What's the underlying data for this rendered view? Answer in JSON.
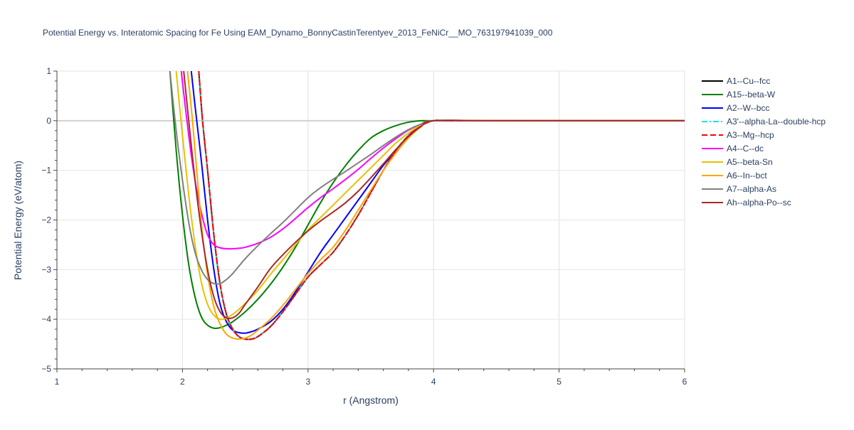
{
  "chart_data": {
    "type": "line",
    "title": "Potential Energy vs. Interatomic Spacing for Fe Using EAM_Dynamo_BonnyCastinTerentyev_2013_FeNiCr__MO_763197941039_000",
    "xlabel": "r (Angstrom)",
    "ylabel": "Potential Energy (eV/atom)",
    "xlim": [
      1,
      6
    ],
    "ylim": [
      -5,
      1
    ],
    "xticks": [
      1,
      2,
      3,
      4,
      5,
      6
    ],
    "yticks": [
      1,
      0,
      -1,
      -2,
      -3,
      -4,
      -5
    ],
    "xtick_labels": [
      "1",
      "2",
      "3",
      "4",
      "5",
      "6"
    ],
    "ytick_labels": [
      "1",
      "0",
      "−1",
      "−2",
      "−3",
      "−4",
      "−5"
    ],
    "grid": true,
    "legend_position": "right",
    "series": [
      {
        "name": "A1--Cu--fcc",
        "color": "#000000",
        "dash": "solid",
        "x": [
          2.13,
          2.16,
          2.2,
          2.25,
          2.3,
          2.35,
          2.4,
          2.45,
          2.5,
          2.55,
          2.6,
          2.7,
          2.8,
          2.9,
          3.0,
          3.1,
          3.2,
          3.3,
          3.4,
          3.5,
          3.6,
          3.7,
          3.8,
          3.9,
          4.0,
          4.1,
          4.5,
          5.0,
          6.0
        ],
        "y": [
          1.0,
          0.0,
          -1.0,
          -2.3,
          -3.3,
          -3.9,
          -4.2,
          -4.35,
          -4.4,
          -4.4,
          -4.35,
          -4.15,
          -3.85,
          -3.5,
          -3.15,
          -2.9,
          -2.65,
          -2.3,
          -1.9,
          -1.45,
          -1.0,
          -0.6,
          -0.3,
          -0.1,
          0.0,
          0.0,
          0.0,
          0.0,
          0.0
        ]
      },
      {
        "name": "A15--beta-W",
        "color": "#008000",
        "dash": "solid",
        "x": [
          1.9,
          1.95,
          2.0,
          2.05,
          2.1,
          2.15,
          2.2,
          2.25,
          2.3,
          2.35,
          2.4,
          2.5,
          2.6,
          2.7,
          2.8,
          2.9,
          3.0,
          3.1,
          3.2,
          3.3,
          3.4,
          3.5,
          3.6,
          3.7,
          3.8,
          3.9,
          4.0,
          4.5,
          6.0
        ],
        "y": [
          1.0,
          -0.6,
          -1.9,
          -2.9,
          -3.55,
          -3.95,
          -4.12,
          -4.18,
          -4.17,
          -4.12,
          -4.05,
          -3.85,
          -3.6,
          -3.3,
          -2.95,
          -2.55,
          -2.1,
          -1.65,
          -1.25,
          -0.9,
          -0.6,
          -0.35,
          -0.2,
          -0.1,
          -0.03,
          0.0,
          0.0,
          0.0,
          0.0
        ]
      },
      {
        "name": "A2--W--bcc",
        "color": "#0000ff",
        "dash": "solid",
        "x": [
          2.07,
          2.1,
          2.15,
          2.2,
          2.25,
          2.3,
          2.35,
          2.4,
          2.45,
          2.5,
          2.55,
          2.6,
          2.7,
          2.8,
          2.9,
          3.0,
          3.1,
          3.2,
          3.3,
          3.4,
          3.5,
          3.6,
          3.7,
          3.8,
          3.9,
          4.0,
          4.1,
          4.5,
          6.0
        ],
        "y": [
          1.0,
          0.3,
          -0.8,
          -2.0,
          -3.0,
          -3.7,
          -4.05,
          -4.22,
          -4.27,
          -4.28,
          -4.25,
          -4.2,
          -4.05,
          -3.8,
          -3.45,
          -3.05,
          -2.65,
          -2.3,
          -1.95,
          -1.6,
          -1.25,
          -0.9,
          -0.6,
          -0.3,
          -0.1,
          0.0,
          0.0,
          0.0,
          0.0
        ]
      },
      {
        "name": "A3'--alpha-La--double-hcp",
        "color": "#00e5ee",
        "dash": "dashdot",
        "x": [
          2.13,
          2.16,
          2.2,
          2.25,
          2.3,
          2.35,
          2.4,
          2.45,
          2.5,
          2.55,
          2.6,
          2.7,
          2.8,
          2.9,
          3.0,
          3.1,
          3.2,
          3.3,
          3.4,
          3.5,
          3.6,
          3.7,
          3.8,
          3.9,
          4.0,
          4.1,
          4.5,
          5.0,
          6.0
        ],
        "y": [
          1.0,
          0.0,
          -1.0,
          -2.3,
          -3.3,
          -3.9,
          -4.2,
          -4.35,
          -4.4,
          -4.4,
          -4.35,
          -4.15,
          -3.85,
          -3.5,
          -3.15,
          -2.9,
          -2.65,
          -2.3,
          -1.9,
          -1.45,
          -1.0,
          -0.6,
          -0.3,
          -0.1,
          0.0,
          0.0,
          0.0,
          0.0,
          0.0
        ]
      },
      {
        "name": "A3--Mg--hcp",
        "color": "#ff0000",
        "dash": "dash",
        "x": [
          2.13,
          2.16,
          2.2,
          2.25,
          2.3,
          2.35,
          2.4,
          2.45,
          2.5,
          2.55,
          2.6,
          2.7,
          2.8,
          2.9,
          3.0,
          3.1,
          3.2,
          3.3,
          3.4,
          3.5,
          3.6,
          3.7,
          3.8,
          3.9,
          4.0,
          4.1,
          4.5,
          5.0,
          6.0
        ],
        "y": [
          1.0,
          0.0,
          -1.0,
          -2.3,
          -3.3,
          -3.9,
          -4.2,
          -4.35,
          -4.4,
          -4.4,
          -4.35,
          -4.15,
          -3.85,
          -3.5,
          -3.15,
          -2.9,
          -2.65,
          -2.3,
          -1.9,
          -1.45,
          -1.0,
          -0.6,
          -0.3,
          -0.1,
          0.0,
          0.0,
          0.0,
          0.0,
          0.0
        ]
      },
      {
        "name": "A4--C--dc",
        "color": "#ff00ff",
        "dash": "solid",
        "x": [
          1.99,
          2.05,
          2.1,
          2.15,
          2.2,
          2.25,
          2.3,
          2.35,
          2.4,
          2.45,
          2.5,
          2.6,
          2.7,
          2.8,
          2.9,
          3.0,
          3.1,
          3.2,
          3.3,
          3.4,
          3.5,
          3.6,
          3.7,
          3.8,
          3.9,
          4.0,
          4.5,
          6.0
        ],
        "y": [
          1.0,
          -0.3,
          -1.2,
          -1.85,
          -2.3,
          -2.5,
          -2.56,
          -2.58,
          -2.58,
          -2.57,
          -2.55,
          -2.47,
          -2.35,
          -2.18,
          -1.97,
          -1.75,
          -1.55,
          -1.37,
          -1.18,
          -0.98,
          -0.76,
          -0.55,
          -0.36,
          -0.19,
          -0.07,
          0.0,
          0.0,
          0.0
        ]
      },
      {
        "name": "A5--beta-Sn",
        "color": "#e6c200",
        "dash": "solid",
        "x": [
          1.95,
          2.0,
          2.05,
          2.1,
          2.15,
          2.2,
          2.25,
          2.3,
          2.35,
          2.4,
          2.45,
          2.5,
          2.6,
          2.7,
          2.8,
          2.9,
          3.0,
          3.1,
          3.2,
          3.3,
          3.4,
          3.5,
          3.6,
          3.7,
          3.8,
          3.9,
          4.0,
          4.5,
          6.0
        ],
        "y": [
          1.0,
          -0.3,
          -1.5,
          -2.5,
          -3.25,
          -3.7,
          -3.92,
          -4.0,
          -3.98,
          -3.9,
          -3.8,
          -3.68,
          -3.42,
          -3.1,
          -2.8,
          -2.5,
          -2.2,
          -1.95,
          -1.7,
          -1.45,
          -1.2,
          -0.95,
          -0.7,
          -0.45,
          -0.25,
          -0.08,
          0.0,
          0.0,
          0.0
        ]
      },
      {
        "name": "A6--In--bct",
        "color": "#ffa500",
        "dash": "solid",
        "x": [
          2.04,
          2.08,
          2.12,
          2.16,
          2.2,
          2.25,
          2.3,
          2.35,
          2.4,
          2.45,
          2.5,
          2.55,
          2.6,
          2.7,
          2.8,
          2.9,
          3.0,
          3.1,
          3.2,
          3.3,
          3.4,
          3.5,
          3.6,
          3.7,
          3.8,
          3.9,
          4.0,
          4.5,
          6.0
        ],
        "y": [
          1.0,
          0.0,
          -1.2,
          -2.3,
          -3.1,
          -3.75,
          -4.1,
          -4.3,
          -4.38,
          -4.4,
          -4.38,
          -4.32,
          -4.22,
          -4.0,
          -3.72,
          -3.4,
          -3.08,
          -2.8,
          -2.55,
          -2.2,
          -1.8,
          -1.4,
          -1.0,
          -0.65,
          -0.35,
          -0.12,
          0.0,
          0.0,
          0.0
        ]
      },
      {
        "name": "A7--alpha-As",
        "color": "#808080",
        "dash": "solid",
        "x": [
          1.9,
          1.95,
          2.0,
          2.05,
          2.1,
          2.15,
          2.2,
          2.25,
          2.3,
          2.35,
          2.4,
          2.5,
          2.6,
          2.7,
          2.8,
          2.9,
          3.0,
          3.1,
          3.2,
          3.3,
          3.4,
          3.5,
          3.6,
          3.7,
          3.8,
          3.9,
          4.0,
          4.5,
          6.0
        ],
        "y": [
          1.0,
          -0.2,
          -1.2,
          -2.05,
          -2.65,
          -3.0,
          -3.2,
          -3.28,
          -3.28,
          -3.2,
          -3.08,
          -2.78,
          -2.52,
          -2.28,
          -2.05,
          -1.8,
          -1.55,
          -1.35,
          -1.18,
          -1.02,
          -0.85,
          -0.68,
          -0.5,
          -0.33,
          -0.18,
          -0.07,
          0.0,
          0.0,
          0.0
        ]
      },
      {
        "name": "Ah--alpha-Po--sc",
        "color": "#a52a2a",
        "dash": "solid",
        "x": [
          2.01,
          2.05,
          2.1,
          2.15,
          2.2,
          2.25,
          2.3,
          2.35,
          2.4,
          2.45,
          2.5,
          2.6,
          2.7,
          2.8,
          2.9,
          3.0,
          3.1,
          3.2,
          3.3,
          3.4,
          3.5,
          3.6,
          3.7,
          3.8,
          3.9,
          4.0,
          4.5,
          6.0
        ],
        "y": [
          1.0,
          0.0,
          -1.2,
          -2.2,
          -3.0,
          -3.55,
          -3.85,
          -3.97,
          -3.97,
          -3.88,
          -3.7,
          -3.35,
          -2.98,
          -2.7,
          -2.45,
          -2.22,
          -2.02,
          -1.84,
          -1.65,
          -1.42,
          -1.15,
          -0.87,
          -0.58,
          -0.32,
          -0.12,
          0.0,
          0.0,
          0.0
        ]
      }
    ]
  }
}
